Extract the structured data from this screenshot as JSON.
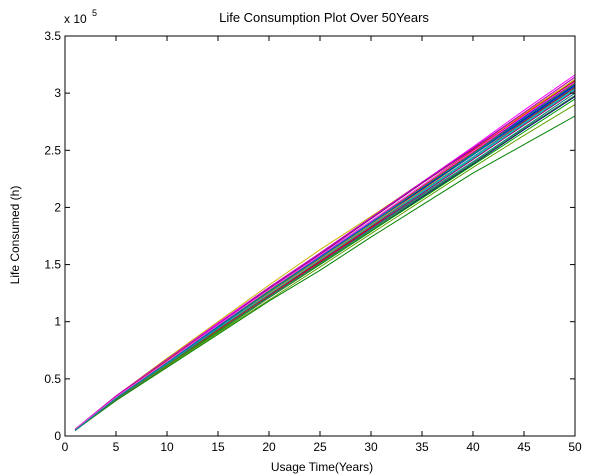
{
  "chart_data": {
    "type": "line",
    "title": "Life Consumption Plot Over 50Years",
    "xlabel": "Usage Time(Years)",
    "ylabel": "Life Consumed (h)",
    "y_multiplier_label": "x 10",
    "y_multiplier_exponent": "5",
    "xlim": [
      0,
      50
    ],
    "ylim": [
      0,
      350000
    ],
    "x_ticks": [
      0,
      5,
      10,
      15,
      20,
      25,
      30,
      35,
      40,
      45,
      50
    ],
    "x_tick_labels": [
      "0",
      "5",
      "10",
      "15",
      "20",
      "25",
      "30",
      "35",
      "40",
      "45",
      "50"
    ],
    "y_ticks": [
      0,
      50000,
      100000,
      150000,
      200000,
      250000,
      300000,
      350000
    ],
    "y_tick_labels": [
      "0",
      "0.5",
      "1",
      "1.5",
      "2",
      "2.5",
      "3",
      "3.5"
    ],
    "grid": false,
    "legend": "none",
    "x": [
      1,
      5,
      10,
      15,
      20,
      25,
      30,
      35,
      40,
      45,
      50
    ],
    "series": [
      {
        "color": "#0000ff",
        "values": [
          5000,
          33000,
          64000,
          95000,
          126000,
          155000,
          186000,
          217000,
          248000,
          279000,
          310000
        ]
      },
      {
        "color": "#ff0000",
        "values": [
          6000,
          34000,
          66000,
          97000,
          128000,
          157000,
          188000,
          219000,
          250000,
          281000,
          312000
        ]
      },
      {
        "color": "#008000",
        "values": [
          5000,
          31000,
          60000,
          89000,
          118000,
          145000,
          174000,
          202000,
          230000,
          255000,
          280000
        ]
      },
      {
        "color": "#c8b400",
        "values": [
          6000,
          35000,
          68000,
          100000,
          132000,
          163000,
          192000,
          222000,
          252000,
          282000,
          312000
        ]
      },
      {
        "color": "#00c0c0",
        "values": [
          5000,
          33000,
          63000,
          94000,
          124000,
          153000,
          183000,
          213000,
          243000,
          273000,
          303000
        ]
      },
      {
        "color": "#ff00ff",
        "values": [
          6000,
          35000,
          67000,
          99000,
          130000,
          160000,
          191000,
          222000,
          253000,
          285000,
          316000
        ]
      },
      {
        "color": "#000080",
        "values": [
          5000,
          32000,
          61000,
          91000,
          121000,
          150000,
          179000,
          209000,
          238000,
          268000,
          297000
        ]
      },
      {
        "color": "#800000",
        "values": [
          6000,
          34000,
          65000,
          96000,
          127000,
          157000,
          187000,
          218000,
          249000,
          280000,
          311000
        ]
      },
      {
        "color": "#008080",
        "values": [
          5000,
          32000,
          62000,
          92000,
          122000,
          151000,
          181000,
          211000,
          240000,
          270000,
          300000
        ]
      },
      {
        "color": "#800080",
        "values": [
          6000,
          35000,
          66000,
          98000,
          129000,
          159000,
          190000,
          221000,
          251000,
          283000,
          314000
        ]
      },
      {
        "color": "#00a000",
        "values": [
          5000,
          32000,
          62000,
          91000,
          121000,
          150000,
          179000,
          208000,
          237000,
          266000,
          295000
        ]
      },
      {
        "color": "#ff8000",
        "values": [
          5000,
          33000,
          64000,
          95000,
          125000,
          155000,
          185000,
          215000,
          246000,
          276000,
          306000
        ]
      },
      {
        "color": "#4040ff",
        "values": [
          6000,
          34000,
          66000,
          97000,
          127000,
          157000,
          187000,
          217000,
          247000,
          277000,
          308000
        ]
      },
      {
        "color": "#a00060",
        "values": [
          5000,
          33000,
          63000,
          93000,
          123000,
          152000,
          182000,
          212000,
          242000,
          272000,
          302000
        ]
      },
      {
        "color": "#20b020",
        "values": [
          6000,
          33000,
          65000,
          96000,
          127000,
          156000,
          186000,
          216000,
          246000,
          276000,
          305000
        ]
      },
      {
        "color": "#e00000",
        "values": [
          5000,
          32000,
          62000,
          93000,
          123000,
          153000,
          183000,
          214000,
          244000,
          275000,
          305000
        ]
      },
      {
        "color": "#0060c0",
        "values": [
          6000,
          34000,
          65000,
          96000,
          126000,
          156000,
          186000,
          216000,
          246000,
          276000,
          306000
        ]
      },
      {
        "color": "#60a000",
        "values": [
          5000,
          32000,
          61000,
          90000,
          119000,
          148000,
          177000,
          206000,
          235000,
          263000,
          290000
        ]
      },
      {
        "color": "#c000c0",
        "values": [
          6000,
          35000,
          67000,
          98000,
          130000,
          160000,
          191000,
          222000,
          252000,
          283000,
          314000
        ]
      },
      {
        "color": "#00b0b0",
        "values": [
          5000,
          33000,
          63000,
          94000,
          124000,
          154000,
          184000,
          214000,
          244000,
          274000,
          304000
        ]
      },
      {
        "color": "#0000c0",
        "values": [
          5000,
          33000,
          64000,
          95000,
          126000,
          156000,
          186000,
          216000,
          247000,
          277000,
          307000
        ]
      },
      {
        "color": "#c04000",
        "values": [
          6000,
          34000,
          66000,
          97000,
          128000,
          158000,
          188000,
          218000,
          248000,
          278000,
          309000
        ]
      },
      {
        "color": "#408040",
        "values": [
          5000,
          32000,
          62000,
          92000,
          121000,
          151000,
          180000,
          210000,
          239000,
          269000,
          298000
        ]
      },
      {
        "color": "#ff40ff",
        "values": [
          6000,
          34000,
          65000,
          97000,
          128000,
          158000,
          188000,
          219000,
          249000,
          280000,
          310000
        ]
      },
      {
        "color": "#008c8c",
        "values": [
          5000,
          33000,
          64000,
          95000,
          126000,
          156000,
          186000,
          217000,
          247000,
          278000,
          308000
        ]
      }
    ]
  }
}
